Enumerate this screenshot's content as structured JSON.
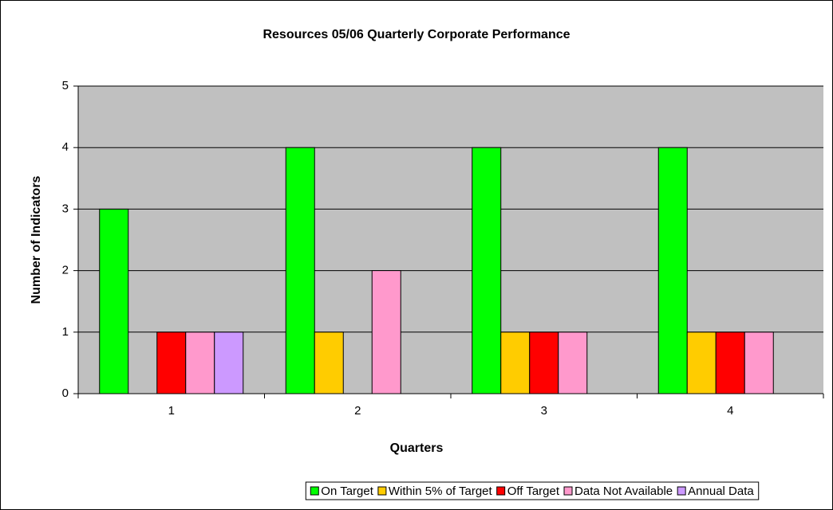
{
  "chart_data": {
    "type": "bar",
    "title": "Resources 05/06 Quarterly Corporate Performance",
    "x_label": "Quarters",
    "y_label": "Number of Indicators",
    "categories": [
      "1",
      "2",
      "3",
      "4"
    ],
    "series": [
      {
        "name": "On Target",
        "color": "#00ff00",
        "values": [
          3,
          4,
          4,
          4
        ]
      },
      {
        "name": "Within 5% of Target",
        "color": "#ffcc00",
        "values": [
          0,
          1,
          1,
          1
        ]
      },
      {
        "name": "Off Target",
        "color": "#ff0000",
        "values": [
          1,
          0,
          1,
          1
        ]
      },
      {
        "name": "Data Not Available",
        "color": "#ff99cc",
        "values": [
          1,
          2,
          1,
          1
        ]
      },
      {
        "name": "Annual Data",
        "color": "#cc99ff",
        "values": [
          1,
          0,
          0,
          0
        ]
      }
    ],
    "ylim": [
      0,
      5
    ],
    "yticks": [
      0,
      1,
      2,
      3,
      4,
      5
    ],
    "grid": true,
    "legend": "bottom"
  }
}
